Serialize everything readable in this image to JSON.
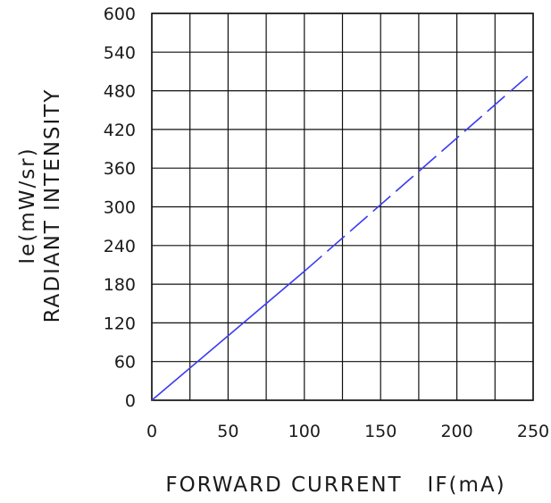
{
  "chart_data": {
    "type": "line",
    "title": "",
    "xlabel": "FORWARD CURRENT   IF(mA)",
    "ylabel_line1": "Ie(mW/sr)",
    "ylabel_line2": "RADIANT INTENSITY",
    "xlim": [
      0,
      250
    ],
    "ylim": [
      0,
      600
    ],
    "x_ticks": [
      0,
      50,
      100,
      150,
      200,
      250
    ],
    "y_ticks": [
      0,
      60,
      120,
      180,
      240,
      300,
      360,
      420,
      480,
      540,
      600
    ],
    "x_tick_labels": [
      "0",
      "50",
      "100",
      "150",
      "200",
      "250"
    ],
    "y_tick_labels": [
      "0",
      "60",
      "120",
      "180",
      "240",
      "300",
      "360",
      "420",
      "480",
      "540",
      "600"
    ],
    "grid": true,
    "grid_x_step": 25,
    "grid_y_step": 60,
    "line_color": "#3b3bf0",
    "series": [
      {
        "style": "solid",
        "x": [
          0,
          100
        ],
        "y": [
          0,
          200
        ]
      },
      {
        "style": "dashed",
        "x": [
          100,
          250
        ],
        "y": [
          200,
          510
        ]
      }
    ]
  }
}
